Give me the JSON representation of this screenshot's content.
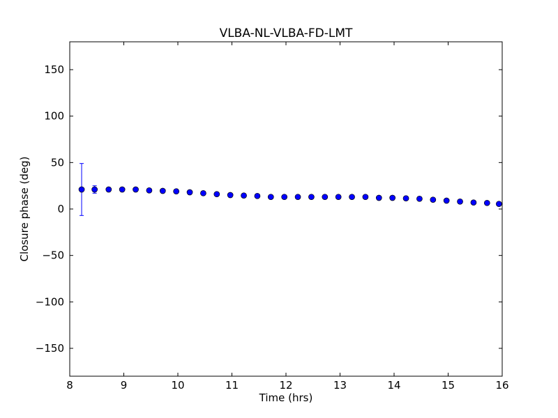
{
  "chart_data": {
    "type": "scatter",
    "title": "VLBA-NL-VLBA-FD-LMT",
    "xlabel": "Time (hrs)",
    "ylabel": "Closure phase (deg)",
    "xlim": [
      8,
      16
    ],
    "ylim": [
      -180,
      180
    ],
    "x_ticks": [
      8,
      9,
      10,
      11,
      12,
      13,
      14,
      15,
      16
    ],
    "y_ticks": [
      -150,
      -100,
      -50,
      0,
      50,
      100,
      150
    ],
    "x_tick_labels": [
      "8",
      "9",
      "10",
      "11",
      "12",
      "13",
      "14",
      "15",
      "16"
    ],
    "y_tick_labels": [
      "−150",
      "−100",
      "−50",
      "0",
      "50",
      "100",
      "150"
    ],
    "grid": false,
    "marker_color": "#0000ff",
    "errorbar_color": "#0000ff",
    "series": [
      {
        "x": [
          8.22,
          8.46,
          8.72,
          8.97,
          9.22,
          9.47,
          9.72,
          9.97,
          10.22,
          10.47,
          10.72,
          10.97,
          11.22,
          11.47,
          11.72,
          11.97,
          12.22,
          12.47,
          12.72,
          12.97,
          13.22,
          13.47,
          13.72,
          13.97,
          14.22,
          14.47,
          14.72,
          14.97,
          15.22,
          15.47,
          15.72,
          15.94
        ],
        "y": [
          21,
          21,
          21,
          21,
          21,
          20,
          19.5,
          19,
          18,
          17,
          16,
          15,
          14.5,
          14,
          13,
          13,
          13,
          13,
          13,
          13,
          13,
          13,
          12,
          12,
          11.5,
          11,
          10,
          9,
          8,
          7,
          6.5,
          5.5
        ],
        "yerr": [
          28,
          4,
          2,
          1.5,
          1.5,
          1.5,
          1.5,
          1.5,
          1.5,
          1.5,
          1.5,
          1.5,
          1.5,
          1.5,
          1.5,
          1.5,
          1.5,
          1.5,
          1.5,
          1.5,
          1.5,
          1.5,
          1.5,
          1.5,
          1.5,
          1.5,
          1.5,
          1.5,
          1.5,
          1.5,
          1.5,
          1.5
        ]
      }
    ]
  }
}
